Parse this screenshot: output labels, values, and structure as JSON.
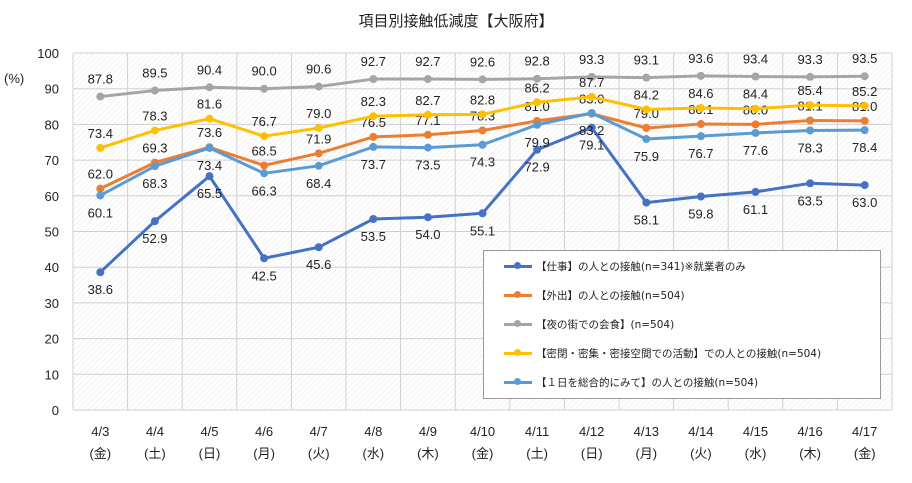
{
  "chart_data": {
    "type": "line",
    "title": "項目別接触低減度【大阪府】",
    "ylabel": "(%)",
    "ylim": [
      0,
      100
    ],
    "yticks": [
      0,
      10,
      20,
      30,
      40,
      50,
      60,
      70,
      80,
      90,
      100
    ],
    "grid": true,
    "legend_position": "bottom-right",
    "categories": [
      "4/3",
      "4/4",
      "4/5",
      "4/6",
      "4/7",
      "4/8",
      "4/9",
      "4/10",
      "4/11",
      "4/12",
      "4/13",
      "4/14",
      "4/15",
      "4/16",
      "4/17"
    ],
    "weekdays": [
      "(金)",
      "(土)",
      "(日)",
      "(月)",
      "(火)",
      "(水)",
      "(木)",
      "(金)",
      "(土)",
      "(日)",
      "(月)",
      "(火)",
      "(水)",
      "(木)",
      "(金)"
    ],
    "series": [
      {
        "name": "【仕事】の人との接触(n=341)※就業者のみ",
        "color": "#4472c4",
        "values": [
          38.6,
          52.9,
          65.5,
          42.5,
          45.6,
          53.5,
          54.0,
          55.1,
          72.9,
          79.1,
          58.1,
          59.8,
          61.1,
          63.5,
          63.0
        ]
      },
      {
        "name": "【外出】の人との接触(n=504)",
        "color": "#ed7d31",
        "values": [
          62.0,
          69.3,
          73.6,
          68.5,
          71.9,
          76.5,
          77.1,
          78.3,
          81.0,
          83.0,
          79.0,
          80.1,
          80.0,
          81.1,
          81.0
        ]
      },
      {
        "name": "【夜の街での会食】(n=504)",
        "color": "#a5a5a5",
        "values": [
          87.8,
          89.5,
          90.4,
          90.0,
          90.6,
          92.7,
          92.7,
          92.6,
          92.8,
          93.3,
          93.1,
          93.6,
          93.4,
          93.3,
          93.5
        ]
      },
      {
        "name": "【密閉・密集・密接空間での活動】での人との接触(n=504)",
        "color": "#ffc000",
        "values": [
          73.4,
          78.3,
          81.6,
          76.7,
          79.0,
          82.3,
          82.7,
          82.8,
          86.2,
          87.7,
          84.2,
          84.6,
          84.4,
          85.4,
          85.2
        ]
      },
      {
        "name": "【１日を総合的にみて】の人との接触(n=504)",
        "color": "#5b9bd5",
        "values": [
          60.1,
          68.3,
          73.4,
          66.3,
          68.4,
          73.7,
          73.5,
          74.3,
          79.9,
          83.2,
          75.9,
          76.7,
          77.6,
          78.3,
          78.4
        ]
      }
    ]
  }
}
